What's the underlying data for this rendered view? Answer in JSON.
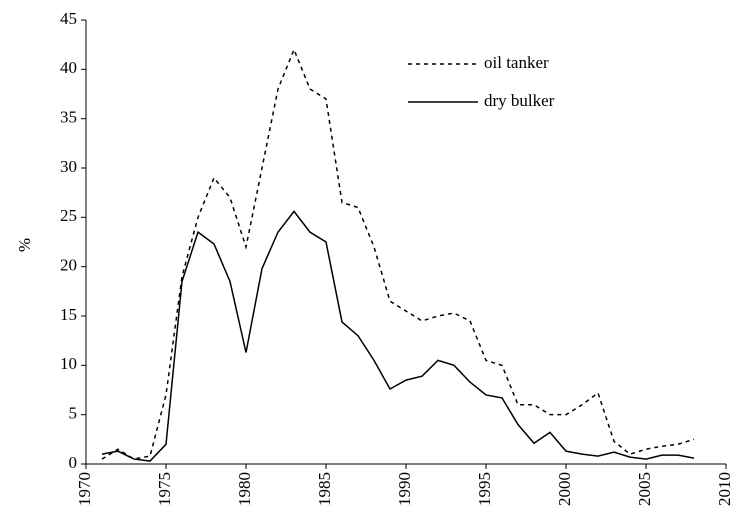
{
  "chart_data": {
    "type": "line",
    "ylabel": "%",
    "x": [
      1971,
      1972,
      1973,
      1974,
      1975,
      1976,
      1977,
      1978,
      1979,
      1980,
      1981,
      1982,
      1983,
      1984,
      1985,
      1986,
      1987,
      1988,
      1989,
      1990,
      1991,
      1992,
      1993,
      1994,
      1995,
      1996,
      1997,
      1998,
      1999,
      2000,
      2001,
      2002,
      2003,
      2004,
      2005,
      2006,
      2007,
      2008
    ],
    "series": [
      {
        "name": "oil tanker",
        "color": "#000000",
        "dash": "dotted",
        "values": [
          0.5,
          1.5,
          0.5,
          0.8,
          7,
          19,
          25,
          29,
          27,
          22,
          30,
          38,
          42,
          38,
          37,
          26.5,
          26,
          22,
          16.5,
          15.5,
          14.5,
          15,
          15.3,
          14.5,
          10.5,
          10,
          6,
          6,
          5,
          5,
          6,
          7.2,
          2.3,
          1,
          1.5,
          1.8,
          2,
          2.5
        ]
      },
      {
        "name": "dry bulker",
        "color": "#000000",
        "dash": "solid",
        "values": [
          1,
          1.3,
          0.5,
          0.3,
          2,
          18.5,
          23.5,
          22.3,
          18.5,
          11.3,
          19.8,
          23.5,
          25.6,
          23.5,
          22.5,
          14.4,
          13,
          10.5,
          7.6,
          8.5,
          8.9,
          10.5,
          10,
          8.3,
          7,
          6.7,
          4,
          2.1,
          3.2,
          1.3,
          1,
          0.8,
          1.2,
          0.7,
          0.5,
          0.9,
          0.9,
          0.6
        ]
      }
    ],
    "xlim": [
      1970,
      2010
    ],
    "xticks": [
      1970,
      1975,
      1980,
      1985,
      1990,
      1995,
      2000,
      2005,
      2010
    ],
    "ylim": [
      0,
      45
    ],
    "yticks": [
      0,
      5,
      10,
      15,
      20,
      25,
      30,
      35,
      40,
      45
    ],
    "grid": false,
    "legend": "upper right"
  }
}
